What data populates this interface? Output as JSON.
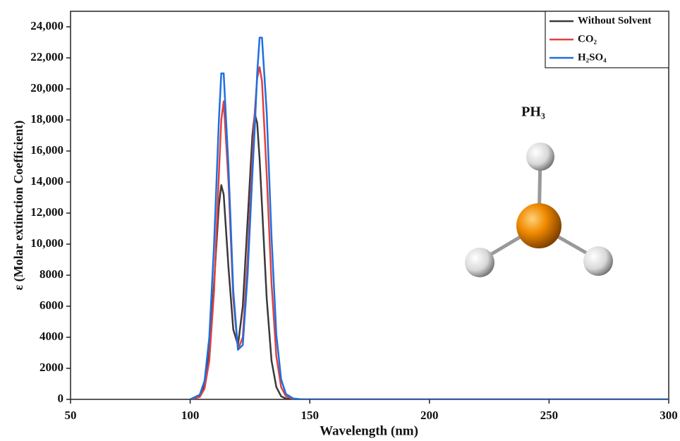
{
  "chart_data": {
    "type": "line",
    "x_label": "Wavelength (nm)",
    "y_label": "ε (Molar extinction Coefficient)",
    "annotation": "PH₃",
    "x": [
      100,
      104,
      106,
      108,
      110,
      112,
      113,
      114,
      116,
      118,
      120,
      122,
      124,
      126,
      127,
      128,
      129,
      130,
      132,
      134,
      136,
      138,
      140,
      143,
      146,
      150,
      200,
      300
    ],
    "series": [
      {
        "name": "Without Solvent",
        "color": "#3a3a3a",
        "values": [
          0,
          200,
          900,
          3000,
          7500,
          12500,
          13800,
          13200,
          8500,
          4500,
          3500,
          6000,
          11500,
          17000,
          18400,
          17800,
          15500,
          12500,
          6500,
          2500,
          800,
          200,
          50,
          0,
          0,
          0,
          0,
          0
        ]
      },
      {
        "name": "CO₂",
        "color": "#e0413f",
        "values": [
          0,
          150,
          700,
          2500,
          7000,
          14500,
          18000,
          19200,
          14000,
          6500,
          3200,
          4000,
          9000,
          15500,
          18500,
          20700,
          21400,
          20500,
          14500,
          7500,
          2800,
          800,
          200,
          30,
          0,
          0,
          0,
          0
        ]
      },
      {
        "name": "H₂SO₄",
        "color": "#1f6fe0",
        "values": [
          0,
          300,
          1200,
          4000,
          10000,
          18000,
          21000,
          21000,
          15000,
          7000,
          3200,
          3500,
          8000,
          14500,
          17500,
          21000,
          23300,
          23300,
          18500,
          10500,
          4200,
          1300,
          350,
          60,
          10,
          0,
          0,
          0
        ]
      }
    ],
    "xlim": [
      50,
      300
    ],
    "xticks": [
      50,
      100,
      150,
      200,
      250,
      300
    ],
    "ylim": [
      0,
      25000
    ],
    "yticks": [
      0,
      2000,
      4000,
      6000,
      8000,
      {
        "value": 10000,
        "label": "10,000"
      },
      {
        "value": 12000,
        "label": "12,000"
      },
      {
        "value": 14000,
        "label": "14,000"
      },
      {
        "value": 16000,
        "label": "16,000"
      },
      {
        "value": 18000,
        "label": "18,000"
      },
      {
        "value": 20000,
        "label": "20,000"
      },
      {
        "value": 22000,
        "label": "22,000"
      },
      {
        "value": 24000,
        "label": "24,000"
      }
    ],
    "legend": "upper right"
  }
}
